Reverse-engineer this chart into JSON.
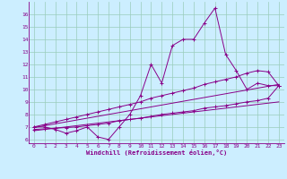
{
  "xlabel": "Windchill (Refroidissement éolien,°C)",
  "bg_color": "#cceeff",
  "line_color": "#880088",
  "grid_color": "#99ccbb",
  "x_data": [
    0,
    1,
    2,
    3,
    4,
    5,
    6,
    7,
    8,
    9,
    10,
    11,
    12,
    13,
    14,
    15,
    16,
    17,
    18,
    19,
    20,
    21,
    22,
    23
  ],
  "y_main": [
    7.0,
    7.0,
    6.8,
    6.5,
    6.7,
    7.0,
    6.2,
    6.0,
    7.0,
    8.0,
    9.5,
    12.0,
    10.5,
    13.5,
    14.0,
    14.0,
    15.3,
    16.5,
    12.8,
    11.5,
    10.0,
    10.5,
    10.3,
    10.3
  ],
  "y_upper": [
    7.0,
    7.2,
    7.4,
    7.6,
    7.8,
    8.0,
    8.2,
    8.4,
    8.6,
    8.8,
    9.0,
    9.3,
    9.5,
    9.7,
    9.9,
    10.1,
    10.4,
    10.6,
    10.8,
    11.0,
    11.3,
    11.5,
    11.4,
    10.3
  ],
  "y_lower": [
    6.8,
    6.85,
    6.9,
    6.95,
    7.0,
    7.1,
    7.2,
    7.3,
    7.5,
    7.6,
    7.7,
    7.85,
    8.0,
    8.1,
    8.2,
    8.3,
    8.5,
    8.6,
    8.7,
    8.85,
    9.0,
    9.1,
    9.3,
    10.3
  ],
  "y_trend_upper": [
    6.95,
    7.1,
    7.25,
    7.4,
    7.55,
    7.7,
    7.85,
    8.0,
    8.15,
    8.3,
    8.45,
    8.6,
    8.75,
    8.9,
    9.05,
    9.2,
    9.35,
    9.5,
    9.65,
    9.8,
    9.95,
    10.1,
    10.25,
    10.4
  ],
  "y_trend_lower": [
    6.7,
    6.8,
    6.9,
    7.0,
    7.1,
    7.2,
    7.3,
    7.4,
    7.5,
    7.6,
    7.7,
    7.8,
    7.9,
    8.0,
    8.1,
    8.2,
    8.3,
    8.4,
    8.5,
    8.6,
    8.7,
    8.8,
    8.9,
    9.0
  ],
  "ylim": [
    5.7,
    17.0
  ],
  "yticks": [
    6,
    7,
    8,
    9,
    10,
    11,
    12,
    13,
    14,
    15,
    16
  ],
  "xlim": [
    -0.5,
    23.5
  ],
  "xticks": [
    0,
    1,
    2,
    3,
    4,
    5,
    6,
    7,
    8,
    9,
    10,
    11,
    12,
    13,
    14,
    15,
    16,
    17,
    18,
    19,
    20,
    21,
    22,
    23
  ]
}
